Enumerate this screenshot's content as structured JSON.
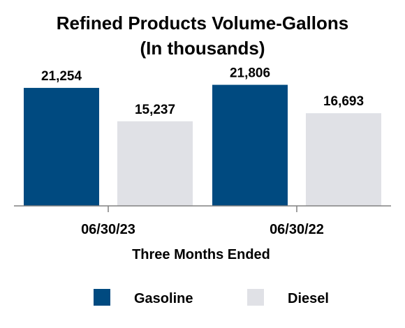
{
  "chart_data": {
    "type": "bar",
    "title": "Refined Products Volume-Gallons",
    "subtitle": "(In thousands)",
    "xlabel": "Three Months Ended",
    "ylabel": "",
    "categories": [
      "06/30/23",
      "06/30/22"
    ],
    "series": [
      {
        "name": "Gasoline",
        "color": "#004a80",
        "values": [
          21254,
          21806
        ]
      },
      {
        "name": "Diesel",
        "color": "#e0e1e6",
        "values": [
          15237,
          16693
        ]
      }
    ],
    "value_labels": [
      [
        "21,254",
        "21,806"
      ],
      [
        "15,237",
        "16,693"
      ]
    ],
    "ylim": [
      0,
      22000
    ],
    "grid": false,
    "legend_position": "bottom"
  }
}
